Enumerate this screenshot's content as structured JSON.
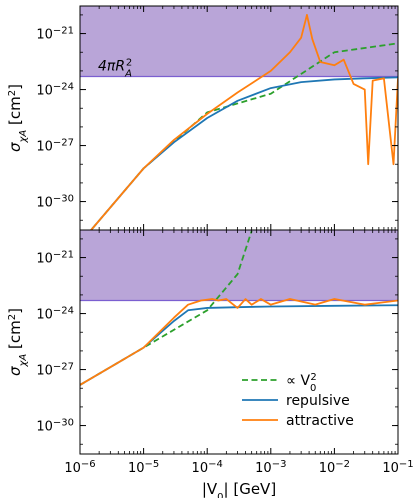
{
  "chart_data": [
    {
      "type": "line",
      "panel": "top",
      "xscale": "log",
      "yscale": "log",
      "xlim": [
        1e-06,
        0.1
      ],
      "ylim": [
        3e-32,
        3e-20
      ],
      "ylabel_parts": {
        "main": "σ",
        "sub": "χA",
        "unit_open": " [cm",
        "unit_sup": "2",
        "unit_close": "]"
      },
      "ytick_values": [
        1e-30,
        1e-27,
        1e-24,
        1e-21
      ],
      "ytick_labels": [
        "10",
        "10",
        "10",
        "10"
      ],
      "ytick_exps": [
        "−30",
        "−27",
        "−24",
        "−21"
      ],
      "shaded_region": {
        "lower": 5e-24,
        "color": "#b9a5d8",
        "label_parts": {
          "main": "4πR",
          "sub": "A",
          "sup": "2"
        }
      },
      "series": [
        {
          "key": "scaling",
          "color": "#2ca02c",
          "style": "dashed",
          "x": [
            1e-06,
            1e-05,
            0.0001,
            0.001,
            0.01,
            0.1
          ],
          "y": [
            6e-33,
            6e-29,
            6e-26,
            6e-25,
            1e-22,
            3e-22
          ]
        },
        {
          "key": "repulsive",
          "color": "#1f77b4",
          "style": "solid",
          "x": [
            1e-06,
            1e-05,
            3e-05,
            0.0001,
            0.0003,
            0.001,
            0.003,
            0.01,
            0.03,
            0.1
          ],
          "y": [
            6e-33,
            6e-29,
            1.5e-27,
            3e-26,
            2.5e-25,
            1.2e-24,
            2.5e-24,
            3.5e-24,
            4e-24,
            4.5e-24
          ]
        },
        {
          "key": "attractive",
          "color": "#ff7f0e",
          "style": "solid",
          "x": [
            1e-06,
            1e-05,
            3e-05,
            0.0001,
            0.0003,
            0.001,
            0.002,
            0.003,
            0.0037,
            0.0045,
            0.006,
            0.01,
            0.014,
            0.02,
            0.03,
            0.034,
            0.04,
            0.06,
            0.085,
            0.1
          ],
          "y": [
            6e-33,
            6e-29,
            2e-27,
            5e-26,
            7e-25,
            1e-23,
            1e-22,
            6e-22,
            1e-20,
            5e-22,
            3e-23,
            2e-23,
            4e-23,
            2e-24,
            1e-24,
            1e-28,
            3e-24,
            4e-24,
            1e-28,
            4e-24
          ]
        }
      ]
    },
    {
      "type": "line",
      "panel": "bottom",
      "xscale": "log",
      "yscale": "log",
      "xlim": [
        1e-06,
        0.1
      ],
      "ylim": [
        3e-32,
        3e-20
      ],
      "xlabel_parts": {
        "main": "|V",
        "sub": "0",
        "tail": "| [GeV]"
      },
      "ylabel_parts": {
        "main": "σ",
        "sub": "χA",
        "unit_open": " [cm",
        "unit_sup": "2",
        "unit_close": "]"
      },
      "xtick_values": [
        1e-06,
        1e-05,
        0.0001,
        0.001,
        0.01,
        0.1
      ],
      "xtick_labels": [
        "10",
        "10",
        "10",
        "10",
        "10",
        "10"
      ],
      "xtick_exps": [
        "−6",
        "−5",
        "−4",
        "−3",
        "−2",
        "−1"
      ],
      "ytick_values": [
        1e-30,
        1e-27,
        1e-24,
        1e-21
      ],
      "ytick_labels": [
        "10",
        "10",
        "10",
        "10"
      ],
      "ytick_exps": [
        "−30",
        "−27",
        "−24",
        "−21"
      ],
      "shaded_region": {
        "lower": 5e-24,
        "color": "#b9a5d8"
      },
      "legend": {
        "placement": "lower right",
        "entries": [
          {
            "key": "scaling",
            "parts": {
              "main": "∝ V",
              "sub": "0",
              "sup": "2"
            }
          },
          {
            "key": "repulsive",
            "label": "repulsive"
          },
          {
            "key": "attractive",
            "label": "attractive"
          }
        ]
      },
      "series": [
        {
          "key": "scaling",
          "color": "#2ca02c",
          "style": "dashed",
          "x": [
            1e-06,
            1e-05,
            0.0001,
            0.0003,
            0.0005
          ],
          "y": [
            1.5e-28,
            1.5e-26,
            1.5e-24,
            1.3e-22,
            2.7e-20
          ]
        },
        {
          "key": "repulsive",
          "color": "#1f77b4",
          "style": "solid",
          "x": [
            1e-06,
            1e-05,
            3e-05,
            5e-05,
            0.0001,
            0.0003,
            0.001,
            0.01,
            0.1
          ],
          "y": [
            1.5e-28,
            1.5e-26,
            4e-25,
            1.5e-24,
            2e-24,
            2.2e-24,
            2.4e-24,
            2.6e-24,
            2.8e-24
          ]
        },
        {
          "key": "attractive",
          "color": "#ff7f0e",
          "style": "solid",
          "x": [
            1e-06,
            1e-05,
            3e-05,
            5e-05,
            8e-05,
            0.00012,
            0.00015,
            0.0002,
            0.0003,
            0.0004,
            0.0005,
            0.0007,
            0.001,
            0.002,
            0.005,
            0.01,
            0.03,
            0.1
          ],
          "y": [
            1.5e-28,
            1.5e-26,
            6e-25,
            3e-24,
            5e-24,
            6e-24,
            5e-24,
            6e-24,
            2e-24,
            6e-24,
            3e-24,
            6e-24,
            3e-24,
            6e-24,
            3e-24,
            6e-24,
            3e-24,
            5e-24
          ]
        }
      ]
    }
  ]
}
